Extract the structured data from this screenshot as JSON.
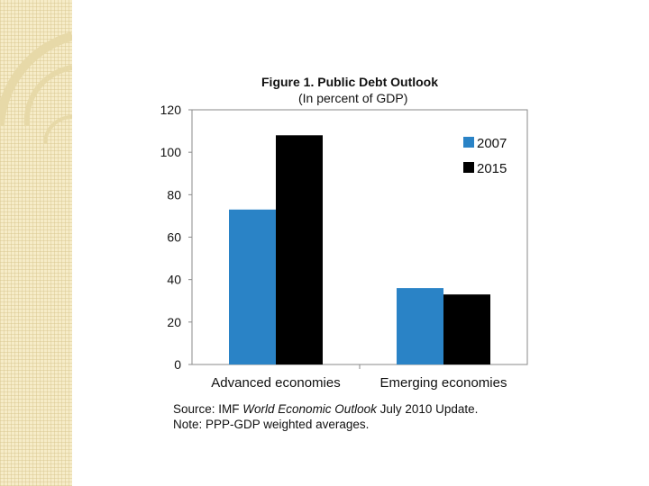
{
  "slide": {
    "accent_strip_color": "#f6ecc8"
  },
  "chart_data": {
    "type": "bar",
    "title": "Figure 1. Public Debt Outlook",
    "subtitle": "(In percent of GDP)",
    "categories": [
      "Advanced economies",
      "Emerging economies"
    ],
    "series": [
      {
        "name": "2007",
        "color": "#2a83c6",
        "values": [
          73,
          36
        ]
      },
      {
        "name": "2015",
        "color": "#000000",
        "values": [
          108,
          33
        ]
      }
    ],
    "ylim": [
      0,
      120
    ],
    "yticks": [
      0,
      20,
      40,
      60,
      80,
      100,
      120
    ],
    "xlabel": "",
    "ylabel": "",
    "legend_position": "top-right",
    "grid": false
  },
  "caption": {
    "source_prefix": "Source: IMF ",
    "source_title": "World Economic Outlook",
    "source_suffix": " July 2010 Update.",
    "note": "Note: PPP-GDP weighted averages."
  }
}
